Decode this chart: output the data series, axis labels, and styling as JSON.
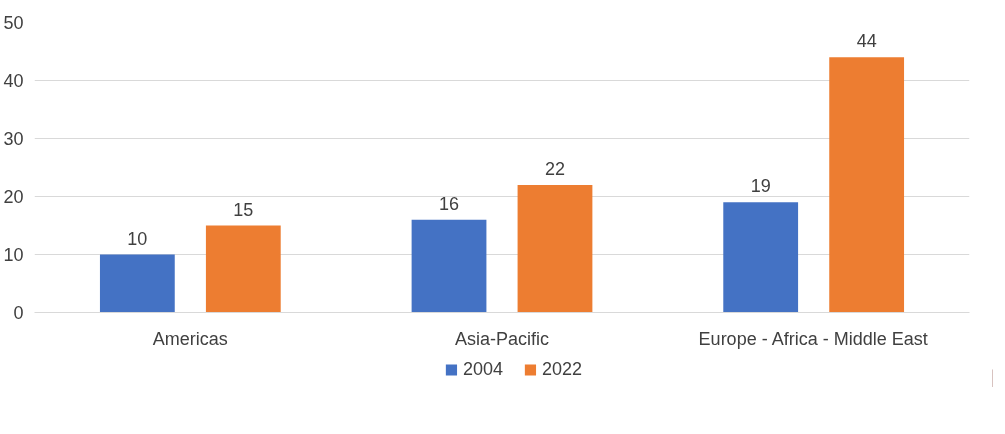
{
  "chart_data": {
    "type": "bar",
    "categories": [
      "Americas",
      "Asia-Pacific",
      "Europe - Africa - Middle East"
    ],
    "series": [
      {
        "name": "2004",
        "color": "#4472c4",
        "values": [
          10,
          16,
          19
        ]
      },
      {
        "name": "2022",
        "color": "#ed7d31",
        "values": [
          15,
          22,
          44
        ]
      }
    ],
    "ylim": [
      0,
      50
    ],
    "yticks": [
      0,
      10,
      20,
      30,
      40,
      50
    ],
    "grid": "y",
    "legend": "bottom",
    "data_labels": true
  }
}
